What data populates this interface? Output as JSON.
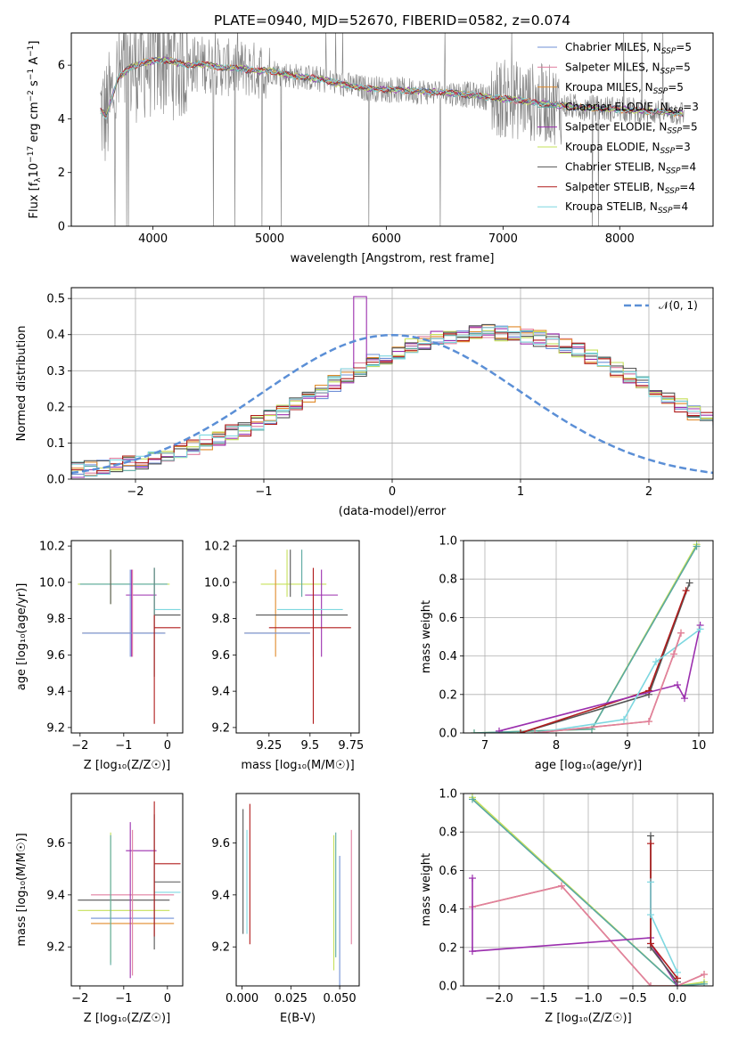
{
  "figure": {
    "title": "PLATE=0940, MJD=52670, FIBERID=0582, z=0.074"
  },
  "series_colors": {
    "Chabrier MILES": "#6f8fd6",
    "Salpeter MILES": "#e07fa0",
    "Kroupa MILES": "#e08a2a",
    "Chabrier ELODIE": "#5aa8a0",
    "Salpeter ELODIE": "#9b2fae",
    "Kroupa ELODIE": "#c6e05a",
    "Chabrier STELIB": "#555555",
    "Salpeter STELIB": "#b01c1c",
    "Kroupa STELIB": "#7dd7e0",
    "data": "#808080"
  },
  "chart_data": [
    {
      "id": "spectrum",
      "type": "line",
      "title": "PLATE=0940, MJD=52670, FIBERID=0582, z=0.074",
      "xlabel": "wavelength [Angstrom, rest frame]",
      "ylabel_parts": [
        "Flux [f",
        "λ",
        "10",
        "−17",
        " erg cm",
        "−2",
        " s",
        "−1",
        " A",
        "−1",
        "]"
      ],
      "xlim": [
        3300,
        8800
      ],
      "ylim": [
        0,
        7.2
      ],
      "xticks": [
        4000,
        5000,
        6000,
        7000,
        8000
      ],
      "yticks": [
        0,
        2,
        4,
        6
      ],
      "grid": false,
      "legend_position": "upper right",
      "legend": [
        {
          "name": "Chabrier MILES",
          "nssp": "5"
        },
        {
          "name": "Salpeter MILES",
          "nssp": "5"
        },
        {
          "name": "Kroupa MILES",
          "nssp": "5"
        },
        {
          "name": "Chabrier ELODIE",
          "nssp": "3"
        },
        {
          "name": "Salpeter ELODIE",
          "nssp": "5"
        },
        {
          "name": "Kroupa ELODIE",
          "nssp": "3"
        },
        {
          "name": "Chabrier STELIB",
          "nssp": "4"
        },
        {
          "name": "Salpeter STELIB",
          "nssp": "4"
        },
        {
          "name": "Kroupa STELIB",
          "nssp": "4"
        }
      ],
      "model_continuum": {
        "x": [
          3550,
          3600,
          3700,
          3800,
          3900,
          4000,
          4100,
          4200,
          4300,
          4400,
          4500,
          4600,
          4700,
          4800,
          4900,
          5000,
          5200,
          5400,
          5600,
          5800,
          6000,
          6200,
          6400,
          6600,
          6800,
          7000,
          7200,
          7400,
          7600,
          7800,
          8000,
          8200,
          8400,
          8550
        ],
        "y": [
          4.3,
          4.1,
          5.5,
          5.9,
          6.1,
          6.15,
          6.2,
          6.1,
          6.0,
          6.05,
          6.0,
          5.9,
          5.9,
          5.85,
          5.8,
          5.8,
          5.6,
          5.5,
          5.3,
          5.15,
          5.1,
          5.05,
          5.0,
          4.95,
          4.85,
          4.75,
          4.65,
          4.55,
          4.45,
          4.4,
          4.35,
          4.3,
          4.25,
          4.2
        ]
      },
      "data_noise_range": [
        3550,
        8550
      ]
    },
    {
      "id": "residual-histogram",
      "type": "histogram",
      "xlabel": "(data-model)/error",
      "ylabel": "Normed distribution",
      "xlim": [
        -2.5,
        2.5
      ],
      "ylim": [
        0,
        0.53
      ],
      "xticks": [
        -2,
        -1,
        0,
        1,
        2
      ],
      "yticks": [
        0.0,
        0.1,
        0.2,
        0.3,
        0.4,
        0.5
      ],
      "grid": true,
      "legend_position": "upper right",
      "gaussian_label": "𝒩(0, 1)",
      "bin_width": 0.1,
      "base_profile": [
        0.025,
        0.03,
        0.035,
        0.04,
        0.045,
        0.05,
        0.06,
        0.07,
        0.08,
        0.09,
        0.1,
        0.115,
        0.13,
        0.14,
        0.155,
        0.17,
        0.185,
        0.205,
        0.225,
        0.245,
        0.265,
        0.285,
        0.305,
        0.325,
        0.34,
        0.355,
        0.37,
        0.38,
        0.39,
        0.395,
        0.4,
        0.405,
        0.41,
        0.405,
        0.4,
        0.395,
        0.39,
        0.38,
        0.37,
        0.355,
        0.34,
        0.325,
        0.305,
        0.285,
        0.265,
        0.245,
        0.225,
        0.205,
        0.185,
        0.17,
        0.155,
        0.14,
        0.125,
        0.11,
        0.095,
        0.085,
        0.075,
        0.065,
        0.055,
        0.045,
        0.04,
        0.035,
        0.03,
        0.027,
        0.025,
        0.022,
        0.02,
        0.02,
        0.018,
        0.016
      ],
      "base_profile_start": -2.5
    },
    {
      "id": "age-vs-Z",
      "type": "errorbar",
      "xlabel": "Z [log₁₀(Z/Z☉)]",
      "ylabel": "age  [log₁₀(age/yr)]",
      "xlim": [
        -2.2,
        0.35
      ],
      "ylim": [
        9.17,
        10.23
      ],
      "xticks": [
        -2,
        -1,
        0
      ],
      "yticks": [
        9.2,
        9.4,
        9.6,
        9.8,
        10.0,
        10.2
      ],
      "grid": false,
      "points": [
        {
          "series": "Kroupa ELODIE",
          "x": -1.0,
          "xerr": 1.05,
          "y": 9.99,
          "yerr": 0.0
        },
        {
          "series": "Chabrier ELODIE",
          "x": -1.0,
          "xerr": 1.0,
          "y": 9.99,
          "yerr": 0.0
        },
        {
          "series": "Kroupa ELODIE",
          "x": -1.3,
          "xerr": 0.0,
          "y": 10.03,
          "yerr": 0.15
        },
        {
          "series": "Chabrier STELIB",
          "x": -1.3,
          "xerr": 0.0,
          "y": 10.03,
          "yerr": 0.15
        },
        {
          "series": "Salpeter ELODIE",
          "x": -0.6,
          "xerr": 0.35,
          "y": 9.93,
          "yerr": 0.0
        },
        {
          "series": "Salpeter ELODIE",
          "x": -0.82,
          "xerr": 0.0,
          "y": 9.83,
          "yerr": 0.24
        },
        {
          "series": "Kroupa MILES",
          "x": -1.0,
          "xerr": 0.95,
          "y": 9.72,
          "yerr": 0.0
        },
        {
          "series": "Chabrier MILES",
          "x": -1.0,
          "xerr": 0.95,
          "y": 9.72,
          "yerr": 0.0
        },
        {
          "series": "Chabrier MILES",
          "x": -0.85,
          "xerr": 0.0,
          "y": 9.83,
          "yerr": 0.24
        },
        {
          "series": "Salpeter MILES",
          "x": -0.8,
          "xerr": 0.0,
          "y": 9.83,
          "yerr": 0.24
        },
        {
          "series": "Chabrier STELIB",
          "x": -0.3,
          "xerr": 0.0,
          "y": 9.78,
          "yerr": 0.3
        },
        {
          "series": "Chabrier STELIB",
          "x": 0.0,
          "xerr": 0.3,
          "y": 9.82,
          "yerr": 0.0
        },
        {
          "series": "Kroupa STELIB",
          "x": 0.0,
          "xerr": 0.3,
          "y": 9.85,
          "yerr": 0.0
        },
        {
          "series": "Salpeter STELIB",
          "x": -0.3,
          "xerr": 0.0,
          "y": 9.65,
          "yerr": 0.43
        },
        {
          "series": "Salpeter STELIB",
          "x": 0.0,
          "xerr": 0.3,
          "y": 9.75,
          "yerr": 0.0
        },
        {
          "series": "Chabrier ELODIE",
          "x": -0.3,
          "xerr": 0.0,
          "y": 9.95,
          "yerr": 0.13
        }
      ]
    },
    {
      "id": "age-vs-mass",
      "type": "errorbar",
      "xlabel": "mass [log₁₀(M/M☉)]",
      "ylabel": "",
      "xlim": [
        9.05,
        9.8
      ],
      "ylim": [
        9.17,
        10.23
      ],
      "xticks": [
        9.25,
        9.5,
        9.75
      ],
      "yticks": [
        9.2,
        9.4,
        9.6,
        9.8,
        10.0,
        10.2
      ],
      "grid": false,
      "points": [
        {
          "series": "Kroupa ELODIE",
          "x": 9.4,
          "xerr": 0.2,
          "y": 9.99,
          "yerr": 0.0
        },
        {
          "series": "Kroupa ELODIE",
          "x": 9.36,
          "xerr": 0.0,
          "y": 10.05,
          "yerr": 0.13
        },
        {
          "series": "Chabrier STELIB",
          "x": 9.38,
          "xerr": 0.0,
          "y": 10.05,
          "yerr": 0.13
        },
        {
          "series": "Chabrier ELODIE",
          "x": 9.45,
          "xerr": 0.0,
          "y": 10.05,
          "yerr": 0.13
        },
        {
          "series": "Salpeter ELODIE",
          "x": 9.57,
          "xerr": 0.0,
          "y": 9.83,
          "yerr": 0.24
        },
        {
          "series": "Salpeter ELODIE",
          "x": 9.57,
          "xerr": 0.1,
          "y": 9.93,
          "yerr": 0.0
        },
        {
          "series": "Kroupa MILES",
          "x": 9.29,
          "xerr": 0.0,
          "y": 9.83,
          "yerr": 0.24
        },
        {
          "series": "Kroupa MILES",
          "x": 9.3,
          "xerr": 0.2,
          "y": 9.72,
          "yerr": 0.0
        },
        {
          "series": "Chabrier MILES",
          "x": 9.3,
          "xerr": 0.2,
          "y": 9.72,
          "yerr": 0.0
        },
        {
          "series": "Salpeter MILES",
          "x": 9.52,
          "xerr": 0.0,
          "y": 9.83,
          "yerr": 0.24
        },
        {
          "series": "Chabrier STELIB",
          "x": 9.45,
          "xerr": 0.28,
          "y": 9.82,
          "yerr": 0.0
        },
        {
          "series": "Kroupa STELIB",
          "x": 9.5,
          "xerr": 0.2,
          "y": 9.85,
          "yerr": 0.0
        },
        {
          "series": "Salpeter STELIB",
          "x": 9.52,
          "xerr": 0.0,
          "y": 9.65,
          "yerr": 0.43
        },
        {
          "series": "Salpeter STELIB",
          "x": 9.5,
          "xerr": 0.25,
          "y": 9.75,
          "yerr": 0.0
        }
      ]
    },
    {
      "id": "massweight-vs-age",
      "type": "line",
      "xlabel": "age  [log₁₀(age/yr)]",
      "ylabel": "mass weight",
      "xlim": [
        6.7,
        10.2
      ],
      "ylim": [
        0,
        1.0
      ],
      "xticks": [
        7,
        8,
        9,
        10
      ],
      "yticks": [
        0.0,
        0.2,
        0.4,
        0.6,
        0.8,
        1.0
      ],
      "grid": true,
      "series": [
        {
          "name": "Kroupa ELODIE",
          "x": [
            6.85,
            8.5,
            9.97
          ],
          "y": [
            0.0,
            0.02,
            0.98
          ]
        },
        {
          "name": "Chabrier ELODIE",
          "x": [
            6.85,
            8.5,
            9.97
          ],
          "y": [
            0.0,
            0.02,
            0.97
          ]
        },
        {
          "name": "Chabrier STELIB",
          "x": [
            7.5,
            9.3,
            9.87
          ],
          "y": [
            0.0,
            0.2,
            0.78
          ]
        },
        {
          "name": "Salpeter STELIB",
          "x": [
            7.5,
            9.3,
            9.82
          ],
          "y": [
            0.0,
            0.22,
            0.74
          ]
        },
        {
          "name": "Salpeter ELODIE",
          "x": [
            7.2,
            9.7,
            9.8,
            10.02
          ],
          "y": [
            0.01,
            0.25,
            0.18,
            0.56
          ]
        },
        {
          "name": "Kroupa STELIB",
          "x": [
            7.7,
            8.95,
            9.4,
            10.02
          ],
          "y": [
            0.0,
            0.07,
            0.37,
            0.54
          ]
        },
        {
          "name": "Kroupa MILES",
          "x": [
            7.7,
            9.3,
            9.65,
            9.75
          ],
          "y": [
            0.0,
            0.06,
            0.41,
            0.52
          ]
        },
        {
          "name": "Salpeter MILES",
          "x": [
            7.7,
            9.3,
            9.65,
            9.75
          ],
          "y": [
            0.0,
            0.06,
            0.41,
            0.52
          ]
        }
      ]
    },
    {
      "id": "mass-vs-Z",
      "type": "errorbar",
      "xlabel": "Z [log₁₀(Z/Z☉)]",
      "ylabel": "mass [log₁₀(M/M☉)]",
      "xlim": [
        -2.2,
        0.35
      ],
      "ylim": [
        9.05,
        9.79
      ],
      "xticks": [
        -2,
        -1,
        0
      ],
      "yticks": [
        9.2,
        9.4,
        9.6
      ],
      "grid": false,
      "points": [
        {
          "series": "Kroupa ELODIE",
          "x": -1.0,
          "xerr": 1.05,
          "y": 9.34,
          "yerr": 0.0
        },
        {
          "series": "Chabrier STELIB",
          "x": -1.0,
          "xerr": 1.05,
          "y": 9.38,
          "yerr": 0.0
        },
        {
          "series": "Salpeter MILES",
          "x": -0.8,
          "xerr": 0.95,
          "y": 9.4,
          "yerr": 0.0
        },
        {
          "series": "Kroupa STELIB",
          "x": 0.0,
          "xerr": 0.3,
          "y": 9.41,
          "yerr": 0.0
        },
        {
          "series": "Chabrier MILES",
          "x": -0.8,
          "xerr": 0.95,
          "y": 9.31,
          "yerr": 0.0
        },
        {
          "series": "Kroupa MILES",
          "x": -0.8,
          "xerr": 0.95,
          "y": 9.29,
          "yerr": 0.0
        },
        {
          "series": "Chabrier STELIB",
          "x": 0.0,
          "xerr": 0.3,
          "y": 9.45,
          "yerr": 0.0
        },
        {
          "series": "Salpeter STELIB",
          "x": 0.0,
          "xerr": 0.3,
          "y": 9.52,
          "yerr": 0.0
        },
        {
          "series": "Salpeter ELODIE",
          "x": -0.6,
          "xerr": 0.35,
          "y": 9.57,
          "yerr": 0.0
        },
        {
          "series": "Kroupa ELODIE",
          "x": -1.3,
          "xerr": 0.0,
          "y": 9.39,
          "yerr": 0.25
        },
        {
          "series": "Chabrier ELODIE",
          "x": -1.3,
          "xerr": 0.0,
          "y": 9.38,
          "yerr": 0.25
        },
        {
          "series": "Salpeter ELODIE",
          "x": -0.85,
          "xerr": 0.0,
          "y": 9.38,
          "yerr": 0.3
        },
        {
          "series": "Salpeter MILES",
          "x": -0.8,
          "xerr": 0.0,
          "y": 9.37,
          "yerr": 0.28
        },
        {
          "series": "Chabrier STELIB",
          "x": -0.3,
          "xerr": 0.0,
          "y": 9.45,
          "yerr": 0.26
        },
        {
          "series": "Salpeter STELIB",
          "x": -0.3,
          "xerr": 0.0,
          "y": 9.5,
          "yerr": 0.26
        }
      ]
    },
    {
      "id": "mass-vs-EBV",
      "type": "errorbar",
      "xlabel": "E(B-V)",
      "ylabel": "",
      "xlim": [
        -0.003,
        0.06
      ],
      "ylim": [
        9.05,
        9.79
      ],
      "xticks": [
        0.0,
        0.025,
        0.05
      ],
      "xticklabels": [
        "0.000",
        "0.025",
        "0.050"
      ],
      "yticks": [
        9.2,
        9.4,
        9.6
      ],
      "grid": false,
      "points": [
        {
          "series": "Chabrier STELIB",
          "x": 0.0005,
          "xerr": 0.0,
          "y": 9.49,
          "yerr": 0.24
        },
        {
          "series": "Salpeter STELIB",
          "x": 0.004,
          "xerr": 0.0,
          "y": 9.48,
          "yerr": 0.27
        },
        {
          "series": "Kroupa STELIB",
          "x": 0.0025,
          "xerr": 0.0,
          "y": 9.45,
          "yerr": 0.2
        },
        {
          "series": "Kroupa ELODIE",
          "x": 0.047,
          "xerr": 0.0,
          "y": 9.37,
          "yerr": 0.26
        },
        {
          "series": "Chabrier ELODIE",
          "x": 0.048,
          "xerr": 0.0,
          "y": 9.4,
          "yerr": 0.24
        },
        {
          "series": "Chabrier MILES",
          "x": 0.05,
          "xerr": 0.0,
          "y": 9.3,
          "yerr": 0.25
        },
        {
          "series": "Salpeter MILES",
          "x": 0.056,
          "xerr": 0.0,
          "y": 9.43,
          "yerr": 0.22
        }
      ]
    },
    {
      "id": "massweight-vs-Z",
      "type": "line",
      "xlabel": "Z [log₁₀(Z/Z☉)]",
      "ylabel": "mass weight",
      "xlim": [
        -2.4,
        0.4
      ],
      "ylim": [
        0,
        1.0
      ],
      "xticks": [
        -2.0,
        -1.5,
        -1.0,
        -0.5,
        0.0
      ],
      "xticklabels": [
        "−2.0",
        "−1.5",
        "−1.0",
        "−0.5",
        "0.0"
      ],
      "yticks": [
        0.0,
        0.2,
        0.4,
        0.6,
        0.8,
        1.0
      ],
      "grid": true,
      "series": [
        {
          "name": "Kroupa ELODIE",
          "x": [
            -2.3,
            0.0,
            0.3
          ],
          "y": [
            0.98,
            0.0,
            0.02
          ]
        },
        {
          "name": "Chabrier ELODIE",
          "x": [
            -2.3,
            0.0,
            0.3
          ],
          "y": [
            0.97,
            0.0,
            0.01
          ]
        },
        {
          "name": "Kroupa MILES",
          "x": [
            -2.3,
            -1.3,
            -0.3,
            0.0,
            0.3
          ],
          "y": [
            0.41,
            0.52,
            0.0,
            0.0,
            0.06
          ]
        },
        {
          "name": "Salpeter MILES",
          "x": [
            -2.3,
            -1.3,
            -0.3,
            0.0,
            0.3
          ],
          "y": [
            0.41,
            0.52,
            0.0,
            0.0,
            0.06
          ]
        },
        {
          "name": "Salpeter ELODIE",
          "x": [
            -2.3,
            -2.3,
            -0.3,
            -0.3,
            0.0
          ],
          "y": [
            0.56,
            0.18,
            0.25,
            0.22,
            0.0
          ]
        },
        {
          "name": "Chabrier STELIB",
          "x": [
            -0.3,
            -0.3,
            0.0
          ],
          "y": [
            0.78,
            0.2,
            0.02
          ]
        },
        {
          "name": "Salpeter STELIB",
          "x": [
            -0.3,
            -0.3,
            0.0
          ],
          "y": [
            0.74,
            0.22,
            0.04
          ]
        },
        {
          "name": "Kroupa STELIB",
          "x": [
            -0.3,
            -0.3,
            0.0
          ],
          "y": [
            0.54,
            0.37,
            0.07
          ]
        }
      ]
    }
  ]
}
